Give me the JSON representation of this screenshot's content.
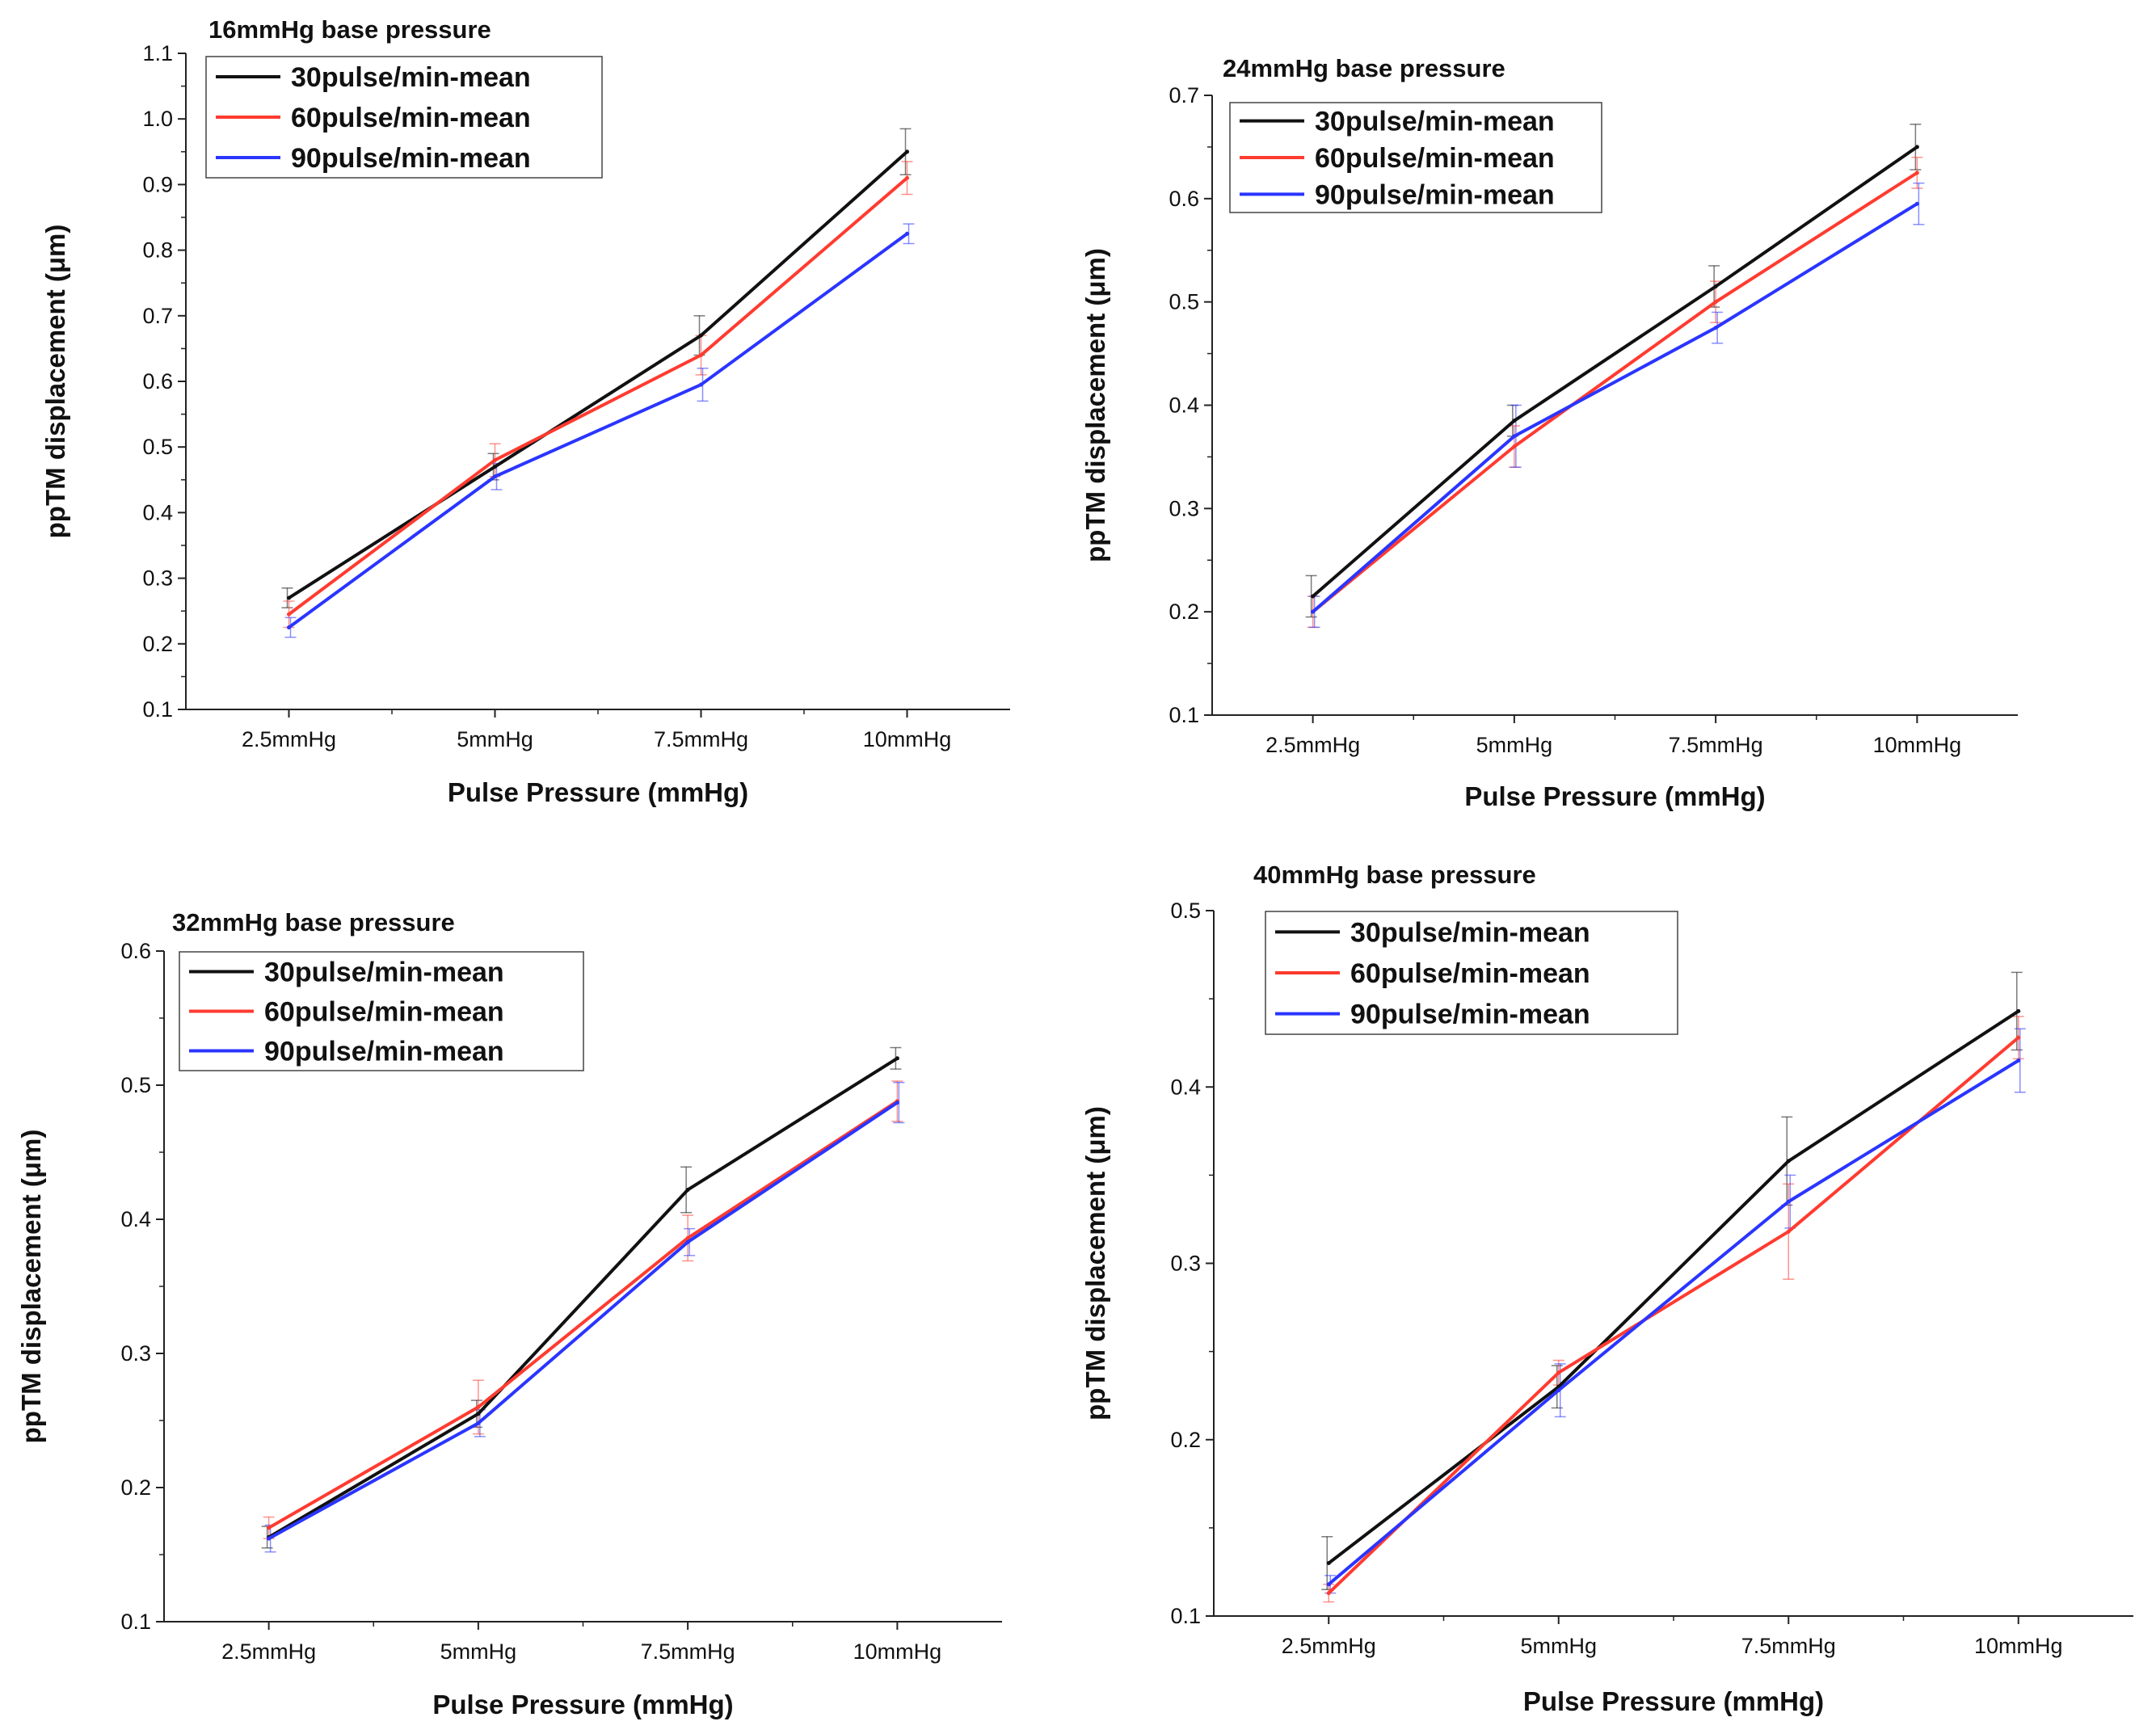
{
  "chart_data": [
    {
      "type": "line",
      "title": "16mmHg base pressure",
      "xlabel": "Pulse Pressure (mmHg)",
      "ylabel": "ppTM displacement (μm)",
      "categories": [
        "2.5mmHg",
        "5mmHg",
        "7.5mmHg",
        "10mmHg"
      ],
      "ylim": [
        0.1,
        1.1
      ],
      "yticks": [
        "0.1",
        "0.2",
        "0.3",
        "0.4",
        "0.5",
        "0.6",
        "0.7",
        "0.8",
        "0.9",
        "1.0",
        "1.1"
      ],
      "legend": "top-left",
      "series": [
        {
          "name": "30pulse/min-mean",
          "color": "#111111",
          "values": [
            0.27,
            0.47,
            0.67,
            0.95
          ],
          "errors": [
            0.015,
            0.02,
            0.03,
            0.035
          ]
        },
        {
          "name": "60pulse/min-mean",
          "color": "#ff3b30",
          "values": [
            0.245,
            0.48,
            0.64,
            0.91
          ],
          "errors": [
            0.02,
            0.025,
            0.03,
            0.025
          ]
        },
        {
          "name": "90pulse/min-mean",
          "color": "#2a35ff",
          "values": [
            0.225,
            0.455,
            0.595,
            0.825
          ],
          "errors": [
            0.015,
            0.02,
            0.025,
            0.015
          ]
        }
      ]
    },
    {
      "type": "line",
      "title": "24mmHg base pressure",
      "xlabel": "Pulse Pressure (mmHg)",
      "ylabel": "ppTM displacement (μm)",
      "categories": [
        "2.5mmHg",
        "5mmHg",
        "7.5mmHg",
        "10mmHg"
      ],
      "ylim": [
        0.1,
        0.7
      ],
      "yticks": [
        "0.1",
        "0.2",
        "0.3",
        "0.4",
        "0.5",
        "0.6",
        "0.7"
      ],
      "legend": "top-left",
      "series": [
        {
          "name": "30pulse/min-mean",
          "color": "#111111",
          "values": [
            0.215,
            0.385,
            0.515,
            0.65
          ],
          "errors": [
            0.02,
            0.015,
            0.02,
            0.022
          ]
        },
        {
          "name": "60pulse/min-mean",
          "color": "#ff3b30",
          "values": [
            0.2,
            0.36,
            0.5,
            0.625
          ],
          "errors": [
            0.015,
            0.02,
            0.02,
            0.015
          ]
        },
        {
          "name": "90pulse/min-mean",
          "color": "#2a35ff",
          "values": [
            0.2,
            0.37,
            0.475,
            0.595
          ],
          "errors": [
            0.015,
            0.03,
            0.015,
            0.02
          ]
        }
      ]
    },
    {
      "type": "line",
      "title": "32mmHg base pressure",
      "xlabel": "Pulse Pressure (mmHg)",
      "ylabel": "ppTM displacement (μm)",
      "categories": [
        "2.5mmHg",
        "5mmHg",
        "7.5mmHg",
        "10mmHg"
      ],
      "ylim": [
        0.1,
        0.6
      ],
      "yticks": [
        "0.1",
        "0.2",
        "0.3",
        "0.4",
        "0.5",
        "0.6"
      ],
      "legend": "top-left",
      "series": [
        {
          "name": "30pulse/min-mean",
          "color": "#111111",
          "values": [
            0.163,
            0.255,
            0.422,
            0.52
          ],
          "errors": [
            0.008,
            0.01,
            0.017,
            0.008
          ]
        },
        {
          "name": "60pulse/min-mean",
          "color": "#ff3b30",
          "values": [
            0.17,
            0.26,
            0.386,
            0.488
          ],
          "errors": [
            0.008,
            0.02,
            0.017,
            0.015
          ]
        },
        {
          "name": "90pulse/min-mean",
          "color": "#2a35ff",
          "values": [
            0.162,
            0.248,
            0.383,
            0.487
          ],
          "errors": [
            0.01,
            0.01,
            0.01,
            0.015
          ]
        }
      ]
    },
    {
      "type": "line",
      "title": "40mmHg base pressure",
      "xlabel": "Pulse Pressure (mmHg)",
      "ylabel": "ppTM displacement (μm)",
      "categories": [
        "2.5mmHg",
        "5mmHg",
        "7.5mmHg",
        "10mmHg"
      ],
      "ylim": [
        0.1,
        0.5
      ],
      "yticks": [
        "0.1",
        "0.2",
        "0.3",
        "0.4",
        "0.5"
      ],
      "legend": "top-left",
      "series": [
        {
          "name": "30pulse/min-mean",
          "color": "#111111",
          "values": [
            0.13,
            0.23,
            0.358,
            0.443
          ],
          "errors": [
            0.015,
            0.012,
            0.025,
            0.022
          ]
        },
        {
          "name": "60pulse/min-mean",
          "color": "#ff3b30",
          "values": [
            0.113,
            0.238,
            0.318,
            0.428
          ],
          "errors": [
            0.005,
            0.007,
            0.027,
            0.012
          ]
        },
        {
          "name": "90pulse/min-mean",
          "color": "#2a35ff",
          "values": [
            0.118,
            0.228,
            0.335,
            0.415
          ],
          "errors": [
            0.005,
            0.015,
            0.015,
            0.018
          ]
        }
      ]
    }
  ]
}
